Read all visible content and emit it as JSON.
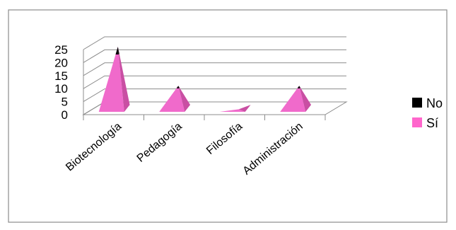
{
  "chart_data": {
    "type": "bar",
    "style": "3d-pyramid",
    "categories": [
      "Biotecnología",
      "Pedagogía",
      "Filosofía",
      "Administración"
    ],
    "series": [
      {
        "name": "Sí",
        "values": [
          22,
          9,
          1,
          9
        ],
        "color": "#f06acb"
      },
      {
        "name": "No",
        "values": [
          3,
          1,
          0,
          1
        ],
        "color": "#000000"
      }
    ],
    "stacked": true,
    "ylim": [
      0,
      25
    ],
    "yticks": [
      "0",
      "5",
      "10",
      "15",
      "20",
      "25"
    ],
    "grid": true,
    "legend_position": "right",
    "legend": [
      {
        "label": "No",
        "color": "#000000"
      },
      {
        "label": "Sí",
        "color": "#ff66cc"
      }
    ]
  }
}
